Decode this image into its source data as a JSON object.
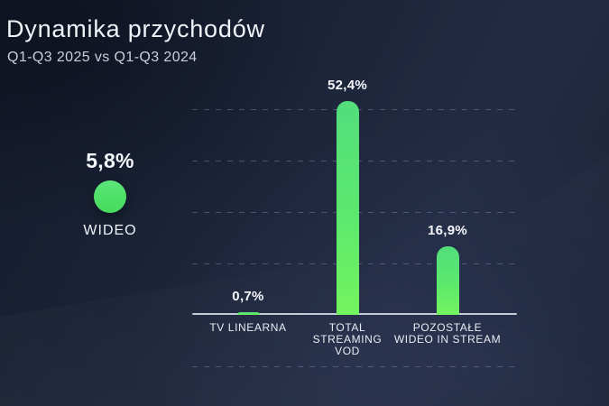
{
  "header": {
    "title": "Dynamika przychodów",
    "subtitle": "Q1-Q3 2025 vs Q1-Q3 2024"
  },
  "kpi": {
    "value_label": "5,8%",
    "label": "WIDEO"
  },
  "chart_data": {
    "type": "bar",
    "title": "Dynamika przychodów",
    "subtitle": "Q1-Q3 2025 vs Q1-Q3 2024",
    "unit": "%",
    "categories": [
      "TV LINEARNA",
      "TOTAL\nSTREAMING\nVOD",
      "POZOSTAŁE\nWIDEO IN STREAM"
    ],
    "values": [
      0.7,
      52.4,
      16.9
    ],
    "value_labels": [
      "0,7%",
      "52,4%",
      "16,9%"
    ],
    "highlight_point": {
      "label": "WIDEO",
      "value": 5.8,
      "value_label": "5,8%"
    },
    "ylim": [
      0,
      55
    ],
    "grid": "horizontal-dashed",
    "legend": "none",
    "colors": {
      "bar_gradient_top": "#53dd7c",
      "bar_gradient_bottom": "#74f45e",
      "dot_green": "#4ddf65",
      "background_navy": "#1b2338",
      "axis_line": "#c3c9d5",
      "text_primary": "#f0f3f8",
      "text_secondary": "#c9cfdb"
    }
  }
}
